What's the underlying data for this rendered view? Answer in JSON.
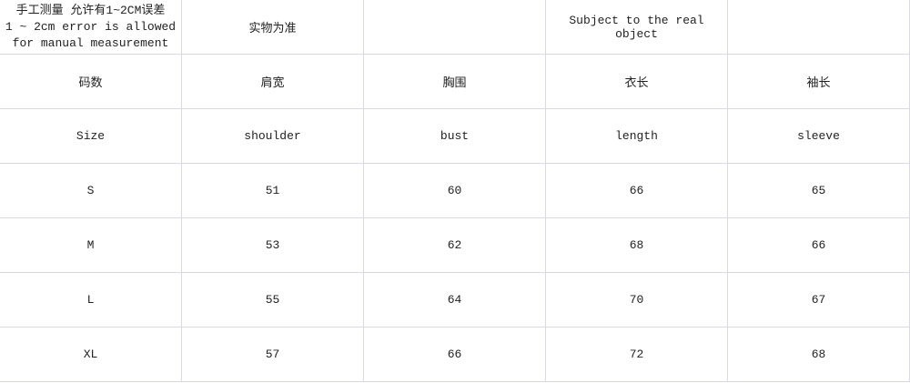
{
  "header_row": {
    "note_line1": "手工测量 允许有1~2CM误差",
    "note_line2": "1 ~ 2cm error is allowed",
    "note_line3": "for manual measurement",
    "cn_subject": "实物为准",
    "en_subject": "Subject to the real object"
  },
  "cn_headers": [
    "码数",
    "肩宽",
    "胸围",
    "衣长",
    "袖长"
  ],
  "en_headers": [
    "Size",
    "shoulder",
    "bust",
    "length",
    "sleeve"
  ],
  "rows": [
    [
      "S",
      "51",
      "60",
      "66",
      "65"
    ],
    [
      "M",
      "53",
      "62",
      "68",
      "66"
    ],
    [
      "L",
      "55",
      "64",
      "70",
      "67"
    ],
    [
      "XL",
      "57",
      "66",
      "72",
      "68"
    ]
  ]
}
